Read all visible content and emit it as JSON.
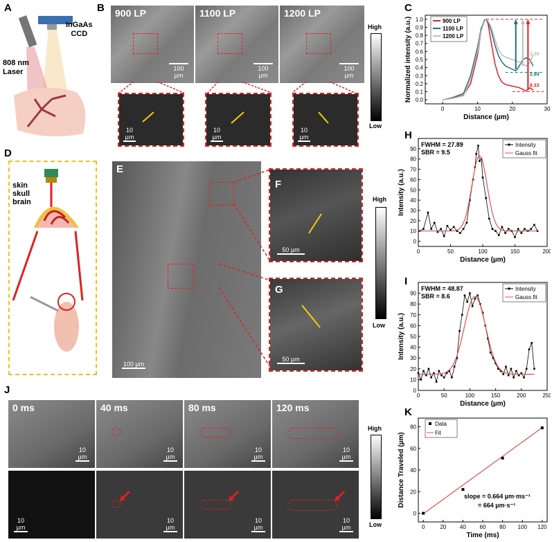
{
  "panels": {
    "A": "A",
    "B": "B",
    "C": "C",
    "D": "D",
    "E": "E",
    "F": "F",
    "G": "G",
    "H": "H",
    "I": "I",
    "J": "J",
    "K": "K"
  },
  "panelA": {
    "laser": "808 nm\nLaser",
    "camera": "InGaAs\nCCD"
  },
  "panelB": {
    "frames": [
      "900 LP",
      "1100 LP",
      "1200 LP"
    ],
    "scale_main": "100 µm",
    "scale_inset": "10 µm"
  },
  "colorbar": {
    "high": "High",
    "low": "Low"
  },
  "panelD": {
    "skin": "skin",
    "skull": "skull",
    "brain": "brain"
  },
  "panelE": {
    "scale": "100 µm"
  },
  "panelFG": {
    "scale": "50 µm"
  },
  "panelJ": {
    "times": [
      "0 ms",
      "40 ms",
      "80 ms",
      "120 ms"
    ],
    "scale": "10 µm"
  },
  "panelC": {
    "legend": [
      "900 LP",
      "1100 LP",
      "1200 LP"
    ],
    "ratios": [
      "2.38",
      "2.94",
      "8.33"
    ]
  },
  "panelH": {
    "fwhm": "FWHM = 27.89",
    "sbr": "SBR = 9.5"
  },
  "panelI": {
    "fwhm": "FWHM = 48.87",
    "sbr": "SBR = 8.6"
  },
  "panelK": {
    "annotation1": "slope = 0.664 µm·ms⁻¹",
    "annotation2": "= 664 µm·s⁻¹"
  },
  "chart_data": [
    {
      "type": "line",
      "panel": "C",
      "xlabel": "Distance (µm)",
      "ylabel": "Normalized intensity (a.u.)",
      "xlim": [
        -5,
        30
      ],
      "ylim": [
        -0.05,
        1.05
      ],
      "xticks": [
        0,
        10,
        20,
        30
      ],
      "yticks": [
        0.0,
        0.1,
        0.2,
        0.3,
        0.4,
        0.5,
        0.6,
        0.7,
        0.8,
        0.9,
        1.0
      ],
      "series": [
        {
          "name": "900 LP",
          "color": "#e0202a",
          "x": [
            0,
            3,
            6,
            8,
            10,
            11,
            12,
            12.5,
            13,
            14,
            15,
            16,
            17,
            18,
            20,
            22,
            23,
            24,
            25,
            26
          ],
          "y": [
            0.0,
            0.02,
            0.06,
            0.2,
            0.55,
            0.85,
            0.99,
            1.0,
            0.95,
            0.7,
            0.45,
            0.3,
            0.22,
            0.19,
            0.17,
            0.15,
            0.13,
            0.11,
            0.15,
            0.12
          ]
        },
        {
          "name": "1100 LP",
          "color": "#1f6f78",
          "x": [
            0,
            3,
            6,
            8,
            10,
            11,
            12,
            12.5,
            13,
            14,
            15,
            16,
            17,
            18,
            20,
            21,
            22,
            23,
            24,
            25,
            26
          ],
          "y": [
            0.0,
            0.03,
            0.08,
            0.3,
            0.65,
            0.88,
            0.98,
            1.0,
            0.97,
            0.85,
            0.68,
            0.55,
            0.47,
            0.42,
            0.38,
            0.36,
            0.42,
            0.5,
            0.52,
            0.5,
            0.42
          ]
        },
        {
          "name": "1200 LP",
          "color": "#bdbdbd",
          "x": [
            0,
            3,
            6,
            8,
            10,
            11,
            12,
            12.5,
            13,
            14,
            15,
            16,
            17,
            18,
            20,
            22,
            23,
            24,
            25,
            26
          ],
          "y": [
            0.0,
            0.02,
            0.05,
            0.25,
            0.6,
            0.85,
            0.97,
            1.0,
            0.98,
            0.9,
            0.75,
            0.62,
            0.56,
            0.53,
            0.5,
            0.47,
            0.44,
            0.42,
            0.46,
            0.56
          ]
        }
      ]
    },
    {
      "type": "scatter",
      "panel": "H",
      "xlabel": "Distance (µm)",
      "ylabel": "Intensity (a.u.)",
      "xlim": [
        0,
        200
      ],
      "ylim": [
        -5,
        100
      ],
      "xticks": [
        0,
        50,
        100,
        150,
        200
      ],
      "yticks": [
        0,
        10,
        20,
        30,
        40,
        50,
        60,
        70,
        80,
        90
      ],
      "legend": [
        "Intensity",
        "Gauss fit"
      ],
      "series": [
        {
          "name": "Intensity",
          "x": [
            2,
            8,
            15,
            20,
            25,
            30,
            35,
            40,
            45,
            50,
            55,
            60,
            65,
            70,
            75,
            80,
            85,
            88,
            90,
            93,
            95,
            98,
            100,
            105,
            110,
            115,
            120,
            125,
            130,
            135,
            140,
            145,
            150,
            155,
            160,
            165,
            170,
            175,
            180,
            185
          ],
          "y": [
            10,
            12,
            28,
            12,
            18,
            9,
            12,
            5,
            15,
            11,
            14,
            10,
            8,
            12,
            18,
            40,
            60,
            72,
            85,
            93,
            78,
            80,
            62,
            42,
            22,
            12,
            10,
            6,
            14,
            8,
            12,
            10,
            4,
            12,
            8,
            12,
            10,
            12,
            16,
            10
          ]
        },
        {
          "name": "Gauss fit",
          "type": "gauss",
          "baseline": 10,
          "amplitude": 73,
          "center": 95,
          "fwhm": 27.89,
          "xmin": 0,
          "xmax": 185
        }
      ]
    },
    {
      "type": "scatter",
      "panel": "I",
      "xlabel": "Distance (µm)",
      "ylabel": "Intensity (a.u.)",
      "xlim": [
        0,
        250
      ],
      "ylim": [
        0,
        100
      ],
      "xticks": [
        0,
        50,
        100,
        150,
        200,
        250
      ],
      "yticks": [
        0,
        10,
        20,
        30,
        40,
        50,
        60,
        70,
        80,
        90
      ],
      "legend": [
        "Intensity",
        "Gauss fit"
      ],
      "series": [
        {
          "name": "Intensity",
          "x": [
            0,
            5,
            10,
            15,
            20,
            25,
            30,
            35,
            40,
            45,
            50,
            55,
            60,
            65,
            70,
            75,
            80,
            85,
            90,
            95,
            100,
            105,
            110,
            115,
            120,
            125,
            130,
            135,
            140,
            145,
            150,
            155,
            160,
            165,
            170,
            175,
            180,
            185,
            190,
            195,
            200,
            205,
            210,
            215,
            220,
            225
          ],
          "y": [
            16,
            10,
            18,
            14,
            20,
            12,
            16,
            8,
            18,
            14,
            12,
            16,
            18,
            12,
            22,
            30,
            55,
            70,
            88,
            82,
            90,
            78,
            85,
            88,
            80,
            72,
            60,
            48,
            35,
            30,
            25,
            20,
            18,
            15,
            22,
            14,
            20,
            12,
            18,
            14,
            16,
            12,
            20,
            38,
            44,
            20
          ]
        },
        {
          "name": "Gauss fit",
          "type": "gauss",
          "baseline": 15,
          "amplitude": 72,
          "center": 110,
          "fwhm": 48.87,
          "xmin": 0,
          "xmax": 225
        }
      ]
    },
    {
      "type": "scatter",
      "panel": "K",
      "xlabel": "Time (ms)",
      "ylabel": "Distance Traveled (µm)",
      "xlim": [
        -5,
        125
      ],
      "ylim": [
        -8,
        88
      ],
      "xticks": [
        0,
        20,
        40,
        60,
        80,
        100,
        120
      ],
      "yticks": [
        0,
        20,
        40,
        60,
        80
      ],
      "legend": [
        "Data",
        "Fit"
      ],
      "series": [
        {
          "name": "Data",
          "x": [
            0,
            40,
            80,
            120
          ],
          "y": [
            0,
            22,
            51,
            79
          ]
        },
        {
          "name": "Fit",
          "type": "linear",
          "slope": 0.664,
          "intercept": -0.5,
          "xmin": 0,
          "xmax": 120
        }
      ]
    }
  ]
}
